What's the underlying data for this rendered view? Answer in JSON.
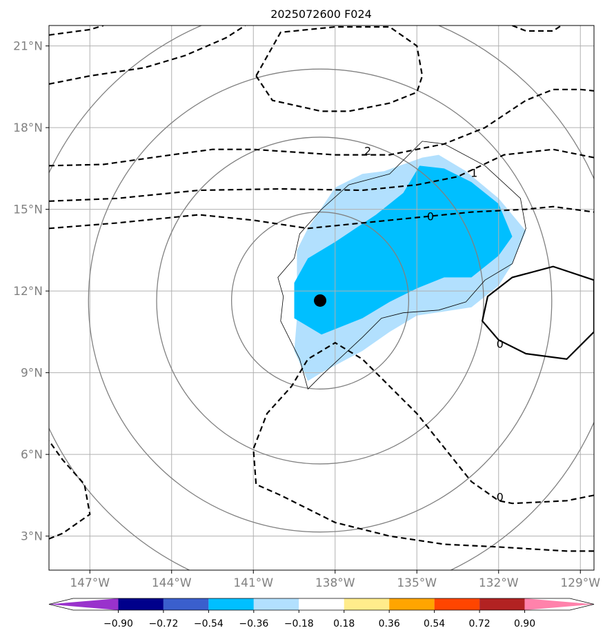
{
  "chart_data": {
    "type": "contour",
    "title": "2025072600 F024",
    "map": {
      "lon_range": [
        -148.5,
        -128.5
      ],
      "lat_range": [
        1.75,
        21.75
      ],
      "x_ticks": [
        {
          "lon": -147,
          "label": "147°W"
        },
        {
          "lon": -144,
          "label": "144°W"
        },
        {
          "lon": -141,
          "label": "141°W"
        },
        {
          "lon": -138,
          "label": "138°W"
        },
        {
          "lon": -135,
          "label": "135°W"
        },
        {
          "lon": -132,
          "label": "132°W"
        },
        {
          "lon": -129,
          "label": "129°W"
        }
      ],
      "y_ticks": [
        {
          "lat": 3,
          "label": "3°N"
        },
        {
          "lat": 6,
          "label": "6°N"
        },
        {
          "lat": 9,
          "label": "9°N"
        },
        {
          "lat": 12,
          "label": "12°N"
        },
        {
          "lat": 15,
          "label": "15°N"
        },
        {
          "lat": 18,
          "label": "18°N"
        },
        {
          "lat": 21,
          "label": "21°N"
        }
      ],
      "grid": true
    },
    "center_marker": {
      "lon": -138.55,
      "lat": 11.65
    },
    "range_rings": {
      "center": {
        "lon": -138.55,
        "lat": 11.65
      },
      "radii_deg": [
        3.25,
        6.0,
        8.5,
        11.0
      ]
    },
    "filled_regions": [
      {
        "level": "-0.36 to -0.18",
        "color": "#b2e0fe",
        "points": [
          [
            -139.4,
            13.5
          ],
          [
            -139.0,
            14.3
          ],
          [
            -138.0,
            15.8
          ],
          [
            -137.0,
            16.3
          ],
          [
            -136.2,
            16.4
          ],
          [
            -134.8,
            16.9
          ],
          [
            -134.2,
            17.0
          ],
          [
            -133.2,
            16.4
          ],
          [
            -132.0,
            15.4
          ],
          [
            -131.0,
            14.2
          ],
          [
            -131.5,
            13.0
          ],
          [
            -132.0,
            12.2
          ],
          [
            -133.0,
            11.4
          ],
          [
            -135.0,
            11.1
          ],
          [
            -136.0,
            10.5
          ],
          [
            -137.0,
            9.8
          ],
          [
            -138.5,
            9.0
          ],
          [
            -139.0,
            8.7
          ],
          [
            -139.5,
            9.8
          ],
          [
            -139.4,
            11.0
          ]
        ]
      },
      {
        "level": "-0.54 to -0.36",
        "color": "#00bfff",
        "points": [
          [
            -139.0,
            13.2
          ],
          [
            -138.0,
            13.8
          ],
          [
            -136.5,
            14.8
          ],
          [
            -135.5,
            15.6
          ],
          [
            -134.9,
            16.6
          ],
          [
            -134.0,
            16.5
          ],
          [
            -133.0,
            16.0
          ],
          [
            -132.0,
            15.2
          ],
          [
            -131.5,
            14.0
          ],
          [
            -132.0,
            13.3
          ],
          [
            -133.0,
            12.5
          ],
          [
            -134.0,
            12.5
          ],
          [
            -135.0,
            12.1
          ],
          [
            -136.0,
            11.6
          ],
          [
            -137.0,
            11.0
          ],
          [
            -138.5,
            10.4
          ],
          [
            -139.5,
            11.0
          ],
          [
            -139.5,
            12.3
          ]
        ]
      }
    ],
    "contours": [
      {
        "value": "0",
        "style": "solid",
        "color": "#000000",
        "label": "0",
        "label_at": [
          -131.95,
          10.07
        ],
        "closed": true,
        "points": [
          [
            -132.6,
            10.9
          ],
          [
            -132.4,
            11.8
          ],
          [
            -131.5,
            12.5
          ],
          [
            -130.0,
            12.9
          ],
          [
            -128.5,
            12.4
          ],
          [
            -128.5,
            10.5
          ],
          [
            -129.5,
            9.5
          ],
          [
            -131.0,
            9.7
          ],
          [
            -132.0,
            10.2
          ]
        ]
      },
      {
        "value": "-1",
        "style": "dashed",
        "color": "#000000",
        "label": "1",
        "label_at": [
          -132.9,
          16.35
        ],
        "closed": false,
        "points": [
          [
            -148.5,
            15.3
          ],
          [
            -146.0,
            15.4
          ],
          [
            -143.0,
            15.7
          ],
          [
            -140.0,
            15.75
          ],
          [
            -137.0,
            15.7
          ],
          [
            -135.0,
            15.9
          ],
          [
            -133.5,
            16.2
          ],
          [
            -131.8,
            17.0
          ],
          [
            -130.0,
            17.2
          ],
          [
            -128.5,
            16.9
          ]
        ]
      },
      {
        "value": "0",
        "style": "dashed",
        "color": "#000000",
        "label": "0",
        "label_at": [
          -134.5,
          14.75
        ],
        "closed": false,
        "points": [
          [
            -148.5,
            14.3
          ],
          [
            -146.0,
            14.5
          ],
          [
            -143.0,
            14.8
          ],
          [
            -141.0,
            14.6
          ],
          [
            -139.0,
            14.3
          ],
          [
            -137.0,
            14.5
          ],
          [
            -135.0,
            14.7
          ],
          [
            -133.0,
            14.9
          ],
          [
            -131.0,
            15.0
          ],
          [
            -130.0,
            15.1
          ],
          [
            -128.5,
            14.9
          ]
        ]
      },
      {
        "value": "-2",
        "style": "dashed",
        "color": "#000000",
        "closed": false,
        "points": [
          [
            -148.5,
            16.6
          ],
          [
            -146.5,
            16.65
          ],
          [
            -144.0,
            17.0
          ],
          [
            -142.5,
            17.2
          ],
          [
            -141.0,
            17.2
          ],
          [
            -138.0,
            17.0
          ],
          [
            -136.0,
            17.0
          ],
          [
            -134.0,
            17.4
          ],
          [
            -132.5,
            18.0
          ],
          [
            -131.0,
            19.0
          ],
          [
            -130.0,
            19.4
          ],
          [
            -129.0,
            19.4
          ],
          [
            -128.5,
            19.35
          ]
        ]
      },
      {
        "value": "-2",
        "style": "dashed",
        "color": "#000000",
        "label": "2",
        "label_at": [
          -136.8,
          17.15
        ],
        "closed": true,
        "points": [
          [
            -140.9,
            19.9
          ],
          [
            -140.3,
            19.0
          ],
          [
            -138.5,
            18.6
          ],
          [
            -137.5,
            18.6
          ],
          [
            -136.0,
            18.9
          ],
          [
            -135.0,
            19.3
          ],
          [
            -134.8,
            19.9
          ],
          [
            -135.0,
            21.0
          ],
          [
            -136.0,
            21.7
          ],
          [
            -138.0,
            21.7
          ],
          [
            -140.0,
            21.5
          ]
        ]
      },
      {
        "value": "-3",
        "style": "dashed",
        "color": "#000000",
        "closed": false,
        "points": [
          [
            -148.5,
            19.6
          ],
          [
            -147.0,
            19.9
          ],
          [
            -145.0,
            20.2
          ],
          [
            -143.5,
            20.65
          ],
          [
            -142.0,
            21.3
          ],
          [
            -141.3,
            21.75
          ]
        ]
      },
      {
        "value": "-3",
        "style": "dashed",
        "color": "#000000",
        "closed": false,
        "points": [
          [
            -148.5,
            21.4
          ],
          [
            -147.0,
            21.6
          ],
          [
            -146.5,
            21.75
          ]
        ]
      },
      {
        "value": "-3",
        "style": "dashed",
        "color": "#000000",
        "closed": false,
        "points": [
          [
            -131.5,
            21.75
          ],
          [
            -131.0,
            21.55
          ],
          [
            -130.0,
            21.55
          ],
          [
            -129.7,
            21.75
          ]
        ]
      },
      {
        "value": "0",
        "style": "dashed",
        "color": "#000000",
        "label": "0",
        "label_at": [
          -131.95,
          4.45
        ],
        "closed": false,
        "points": [
          [
            -128.5,
            4.5
          ],
          [
            -129.5,
            4.3
          ],
          [
            -130.5,
            4.25
          ],
          [
            -131.5,
            4.2
          ],
          [
            -132.0,
            4.3
          ],
          [
            -133.0,
            5.0
          ],
          [
            -135.0,
            7.5
          ],
          [
            -136.0,
            8.5
          ],
          [
            -137.0,
            9.5
          ],
          [
            -138.0,
            10.1
          ],
          [
            -139.0,
            9.5
          ],
          [
            -139.6,
            8.5
          ],
          [
            -140.5,
            7.5
          ],
          [
            -141.0,
            6.2
          ],
          [
            -140.9,
            4.9
          ],
          [
            -140.0,
            4.5
          ],
          [
            -138.0,
            3.5
          ],
          [
            -136.0,
            3.0
          ],
          [
            -134.0,
            2.7
          ],
          [
            -132.0,
            2.6
          ],
          [
            -129.5,
            2.45
          ],
          [
            -128.5,
            2.45
          ]
        ]
      },
      {
        "value": "0",
        "style": "dashed",
        "color": "#000000",
        "closed": false,
        "points": [
          [
            -148.5,
            2.9
          ],
          [
            -148.0,
            3.1
          ],
          [
            -147.0,
            3.8
          ],
          [
            -147.2,
            4.9
          ],
          [
            -148.0,
            5.8
          ],
          [
            -148.5,
            6.5
          ]
        ]
      }
    ],
    "outline": {
      "color": "#000000",
      "points": [
        [
          -139.5,
          13.2
        ],
        [
          -139.3,
          14.1
        ],
        [
          -138.5,
          15.0
        ],
        [
          -137.5,
          15.9
        ],
        [
          -136.0,
          16.3
        ],
        [
          -134.8,
          17.5
        ],
        [
          -134.0,
          17.4
        ],
        [
          -132.5,
          16.6
        ],
        [
          -131.2,
          15.4
        ],
        [
          -131.0,
          14.3
        ],
        [
          -131.5,
          13.0
        ],
        [
          -132.5,
          12.4
        ],
        [
          -133.2,
          11.6
        ],
        [
          -134.2,
          11.3
        ],
        [
          -135.5,
          11.2
        ],
        [
          -136.3,
          11.0
        ],
        [
          -137.0,
          10.3
        ],
        [
          -138.5,
          8.9
        ],
        [
          -139.0,
          8.4
        ],
        [
          -139.3,
          9.5
        ],
        [
          -140.0,
          10.9
        ],
        [
          -139.9,
          11.8
        ],
        [
          -140.1,
          12.5
        ]
      ]
    },
    "colorbar": {
      "levels": [
        "−0.90",
        "−0.72",
        "−0.54",
        "−0.36",
        "−0.18",
        "0.18",
        "0.36",
        "0.54",
        "0.72",
        "0.90"
      ],
      "colors": [
        "#9932cc",
        "#00008b",
        "#3a5fcd",
        "#00bfff",
        "#b2e0fe",
        "#ffffff",
        "#ffec8b",
        "#ffa500",
        "#ff4500",
        "#b22222",
        "#ff82ab"
      ],
      "extend": "both"
    }
  }
}
